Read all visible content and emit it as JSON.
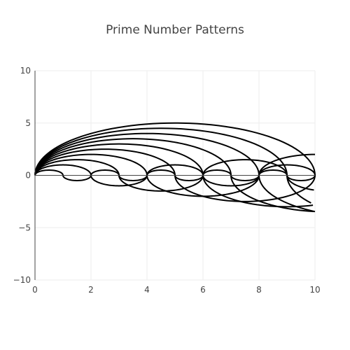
{
  "chart_data": {
    "type": "line",
    "title": "Prime Number Patterns",
    "xlabel": "",
    "ylabel": "",
    "xlim": [
      0,
      10
    ],
    "ylim": [
      -10,
      10
    ],
    "x_ticks": [
      0,
      2,
      4,
      6,
      8,
      10
    ],
    "x_tick_labels": [
      "0",
      "2",
      "4",
      "6",
      "8",
      "10"
    ],
    "y_ticks": [
      -10,
      -5,
      0,
      5,
      10
    ],
    "y_tick_labels": [
      "−10",
      "−5",
      "0",
      "5",
      "10"
    ],
    "grid": true,
    "legend": "none",
    "line_color": "#000000",
    "series": [
      {
        "radius": 0.5,
        "x": [
          0,
          0.5,
          1,
          1.5,
          2,
          2.5,
          3,
          3.5,
          4,
          4.5,
          5,
          5.5,
          6,
          6.5,
          7,
          7.5,
          8,
          8.5,
          9,
          9.5,
          10
        ],
        "y": [
          0,
          0.5,
          0,
          -0.5,
          0,
          0.5,
          0,
          -0.5,
          0,
          0.5,
          0,
          -0.5,
          0,
          0.5,
          0,
          -0.5,
          0,
          0.5,
          0,
          -0.5,
          0
        ]
      },
      {
        "radius": 1.0,
        "x": [
          0,
          1,
          2,
          3,
          4,
          5,
          6,
          7,
          8,
          9,
          10
        ],
        "y": [
          0,
          1,
          0,
          -1,
          0,
          1,
          0,
          -1,
          0,
          1,
          0
        ]
      },
      {
        "radius": 1.5,
        "x": [
          0,
          1.5,
          3,
          4.5,
          6,
          7.5,
          9,
          10
        ],
        "y": [
          0,
          1.5,
          0,
          -1.5,
          0,
          1.5,
          0,
          1.2
        ]
      },
      {
        "radius": 2.0,
        "x": [
          0,
          2,
          4,
          6,
          8,
          10
        ],
        "y": [
          0,
          2,
          0,
          -2,
          0,
          2
        ]
      },
      {
        "radius": 2.5,
        "x": [
          0,
          2.5,
          5,
          7.5,
          10
        ],
        "y": [
          0,
          2.5,
          0,
          -2.5,
          0
        ]
      },
      {
        "radius": 3.0,
        "x": [
          0,
          3,
          6,
          9,
          10
        ],
        "y": [
          0,
          3,
          0,
          -3,
          -2.9
        ]
      },
      {
        "radius": 3.5,
        "x": [
          0,
          3.5,
          7,
          10
        ],
        "y": [
          0,
          3.5,
          0,
          -3.5
        ]
      },
      {
        "radius": 4.0,
        "x": [
          0,
          4,
          8,
          10
        ],
        "y": [
          0,
          4,
          0,
          -3.5
        ]
      },
      {
        "radius": 4.5,
        "x": [
          0,
          4.5,
          9,
          10
        ],
        "y": [
          0,
          4.5,
          0,
          -1.4
        ]
      },
      {
        "radius": 5.0,
        "x": [
          0,
          5,
          10
        ],
        "y": [
          0,
          5,
          0
        ]
      }
    ]
  }
}
